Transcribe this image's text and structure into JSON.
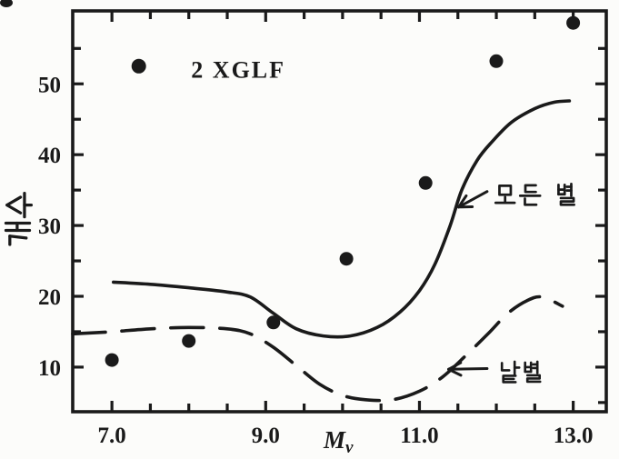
{
  "colors": {
    "ink": "#1a1a1a",
    "paper": "#fcfcfa"
  },
  "chart_data": {
    "type": "scatter",
    "title": "",
    "xlabel": "Mv",
    "xlabel_parts": {
      "main": "M",
      "sub": "v"
    },
    "ylabel": "개수",
    "xlim": [
      6.49,
      13.43
    ],
    "ylim": [
      3.7,
      60.3
    ],
    "grid": false,
    "x_ticks": {
      "start": 7.0,
      "end": 13.0,
      "step": 0.5,
      "labeled": [
        {
          "value": 7.0,
          "label": "7.0"
        },
        {
          "value": 9.0,
          "label": "9.0"
        },
        {
          "value": 11.0,
          "label": "11.0"
        },
        {
          "value": 13.0,
          "label": "13.0"
        }
      ]
    },
    "y_ticks": {
      "start": 5,
      "end": 55,
      "step": 5,
      "labeled": [
        {
          "value": 10,
          "label": "10"
        },
        {
          "value": 20,
          "label": "20"
        },
        {
          "value": 30,
          "label": "30"
        },
        {
          "value": 40,
          "label": "40"
        },
        {
          "value": 50,
          "label": "50"
        }
      ]
    },
    "legend": {
      "label": "2 XGLF",
      "marker": "filled-circle",
      "marker_xy": [
        7.35,
        52.5
      ],
      "label_xy": [
        8.03,
        50.85
      ]
    },
    "series": [
      {
        "name": "2 XGLF",
        "type": "scatter",
        "marker": "filled-circle",
        "points": [
          [
            7.0,
            11.0
          ],
          [
            8.0,
            13.7
          ],
          [
            9.1,
            16.3
          ],
          [
            10.05,
            25.3
          ],
          [
            11.08,
            36.0
          ],
          [
            12.0,
            53.2
          ],
          [
            13.0,
            58.6
          ]
        ]
      },
      {
        "name": "모든 별",
        "type": "line",
        "style": "solid",
        "points": [
          [
            7.02,
            22.0
          ],
          [
            7.5,
            21.7
          ],
          [
            8.0,
            21.2
          ],
          [
            8.5,
            20.6
          ],
          [
            8.8,
            19.9
          ],
          [
            9.1,
            17.6
          ],
          [
            9.4,
            15.4
          ],
          [
            9.75,
            14.4
          ],
          [
            10.1,
            14.4
          ],
          [
            10.45,
            15.6
          ],
          [
            10.75,
            17.8
          ],
          [
            11.0,
            20.8
          ],
          [
            11.2,
            24.5
          ],
          [
            11.4,
            30.0
          ],
          [
            11.55,
            35.0
          ],
          [
            11.75,
            39.2
          ],
          [
            11.95,
            41.9
          ],
          [
            12.2,
            44.6
          ],
          [
            12.5,
            46.5
          ],
          [
            12.75,
            47.4
          ],
          [
            12.95,
            47.6
          ]
        ]
      },
      {
        "name": "낱별",
        "type": "line",
        "style": "dashed",
        "points": [
          [
            6.49,
            14.7
          ],
          [
            7.0,
            15.0
          ],
          [
            7.5,
            15.4
          ],
          [
            8.0,
            15.6
          ],
          [
            8.5,
            15.4
          ],
          [
            8.8,
            14.7
          ],
          [
            9.1,
            12.8
          ],
          [
            9.4,
            10.2
          ],
          [
            9.7,
            7.6
          ],
          [
            10.0,
            6.0
          ],
          [
            10.3,
            5.4
          ],
          [
            10.65,
            5.4
          ],
          [
            11.0,
            6.6
          ],
          [
            11.3,
            8.6
          ],
          [
            11.6,
            11.6
          ],
          [
            11.9,
            14.8
          ],
          [
            12.15,
            17.6
          ],
          [
            12.4,
            19.4
          ],
          [
            12.6,
            19.9
          ],
          [
            12.86,
            18.6
          ]
        ]
      }
    ],
    "annotations": [
      {
        "text": "모든 별",
        "xytext": [
          11.96,
          36.0
        ],
        "arrow_from": [
          11.88,
          34.8
        ],
        "arrow_to": [
          11.51,
          32.6
        ],
        "font_px": 26
      },
      {
        "text": "낱별",
        "xytext": [
          12.02,
          10.9
        ],
        "arrow_from": [
          11.88,
          9.8
        ],
        "arrow_to": [
          11.38,
          9.7
        ],
        "font_px": 25
      }
    ]
  }
}
